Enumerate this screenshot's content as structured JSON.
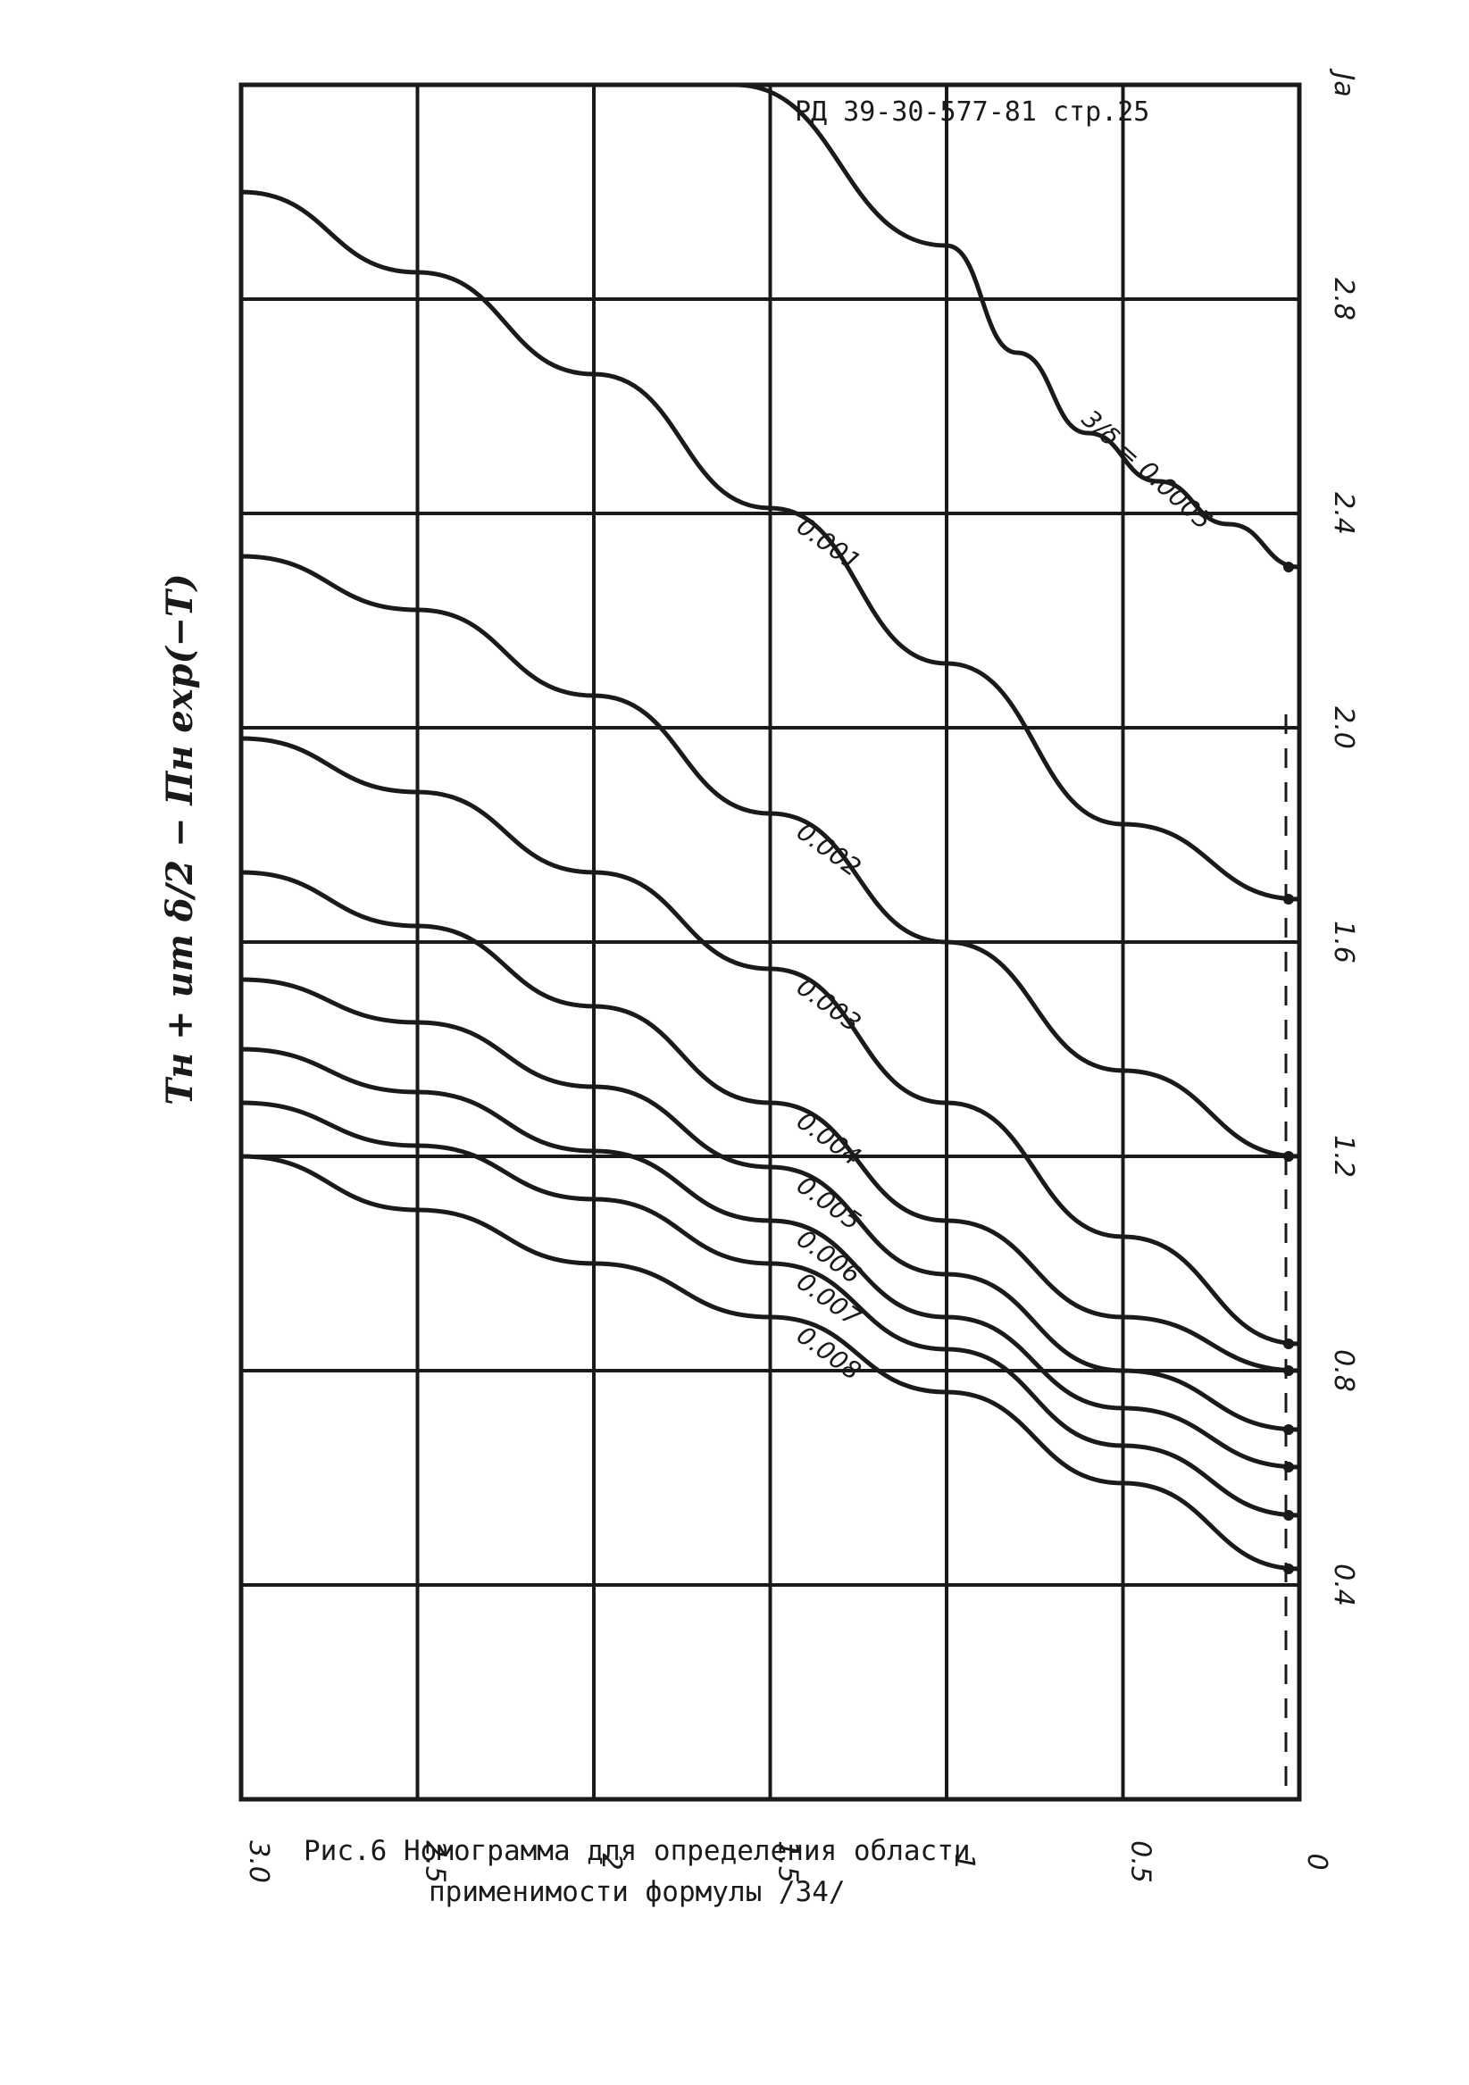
{
  "document": {
    "reference": "РД 39-30-577-81 стр.25",
    "caption_line1": "Рис.6  Номограмма для определения области",
    "caption_line2": "применимости формулы /34/"
  },
  "chart_data": {
    "type": "line",
    "orientation": "rotated-90-clockwise",
    "title": "",
    "xlabel": "",
    "ylabel": "Tн + ит δ/2 − Пн ехр(−T)",
    "ylabel2": "Ja",
    "xlim": [
      0,
      3.0
    ],
    "ylim": [
      0,
      3.2
    ],
    "x_ticks": [
      "3.0",
      "2.5",
      "2",
      "1.5",
      "1",
      "0.5",
      "0"
    ],
    "y_ticks": [
      "0.4",
      "0.8",
      "1.2",
      "1.6",
      "2.0",
      "2.4",
      "2.8",
      "Ja"
    ],
    "grid": true,
    "series": [
      {
        "name": "3/δ = 0.0005",
        "x": [
          1.6,
          1.0,
          0.8,
          0.6,
          0.4,
          0.2,
          0.0
        ],
        "y": [
          3.2,
          2.9,
          2.7,
          2.55,
          2.46,
          2.38,
          2.3
        ]
      },
      {
        "name": "0.001",
        "x": [
          3.0,
          2.5,
          2.0,
          1.5,
          1.0,
          0.5,
          0.0
        ],
        "y": [
          3.0,
          2.85,
          2.66,
          2.41,
          2.12,
          1.82,
          1.68
        ]
      },
      {
        "name": "0.002",
        "x": [
          3.0,
          2.5,
          2.0,
          1.5,
          1.0,
          0.5,
          0.0
        ],
        "y": [
          2.32,
          2.22,
          2.06,
          1.84,
          1.6,
          1.36,
          1.2
        ]
      },
      {
        "name": "0.003",
        "x": [
          3.0,
          2.5,
          2.0,
          1.5,
          1.0,
          0.5,
          0.0
        ],
        "y": [
          1.98,
          1.88,
          1.73,
          1.55,
          1.3,
          1.05,
          0.85
        ]
      },
      {
        "name": "0.004",
        "x": [
          3.0,
          2.5,
          2.0,
          1.5,
          1.0,
          0.5,
          0.0
        ],
        "y": [
          1.73,
          1.63,
          1.48,
          1.3,
          1.08,
          0.9,
          0.8
        ]
      },
      {
        "name": "0.005",
        "x": [
          3.0,
          2.5,
          2.0,
          1.5,
          1.0,
          0.5,
          0.0
        ],
        "y": [
          1.53,
          1.45,
          1.33,
          1.18,
          0.98,
          0.8,
          0.69
        ]
      },
      {
        "name": "0.006",
        "x": [
          3.0,
          2.5,
          2.0,
          1.5,
          1.0,
          0.5,
          0.0
        ],
        "y": [
          1.4,
          1.32,
          1.21,
          1.08,
          0.9,
          0.73,
          0.62
        ]
      },
      {
        "name": "0.007",
        "x": [
          3.0,
          2.5,
          2.0,
          1.5,
          1.0,
          0.5,
          0.0
        ],
        "y": [
          1.3,
          1.22,
          1.12,
          1.0,
          0.84,
          0.66,
          0.53
        ]
      },
      {
        "name": "0.008",
        "x": [
          3.0,
          2.5,
          2.0,
          1.5,
          1.0,
          0.5,
          0.0
        ],
        "y": [
          1.2,
          1.1,
          1.0,
          0.9,
          0.76,
          0.59,
          0.43
        ]
      }
    ],
    "annotations": [
      "3/δ = 0.0005"
    ]
  }
}
